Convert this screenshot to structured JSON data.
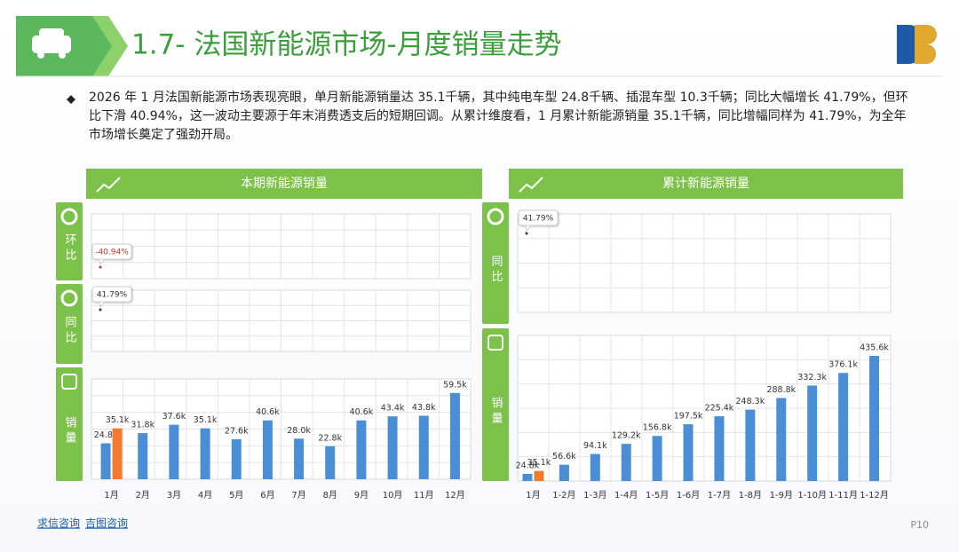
{
  "header": {
    "title": "1.7- 法国新能源市场-月度销量走势"
  },
  "summary": "2026 年 1 月法国新能源市场表现亮眼，单月新能源销量达 35.1千辆，其中纯电车型 24.8千辆、插混车型 10.3千辆；同比大幅增长 41.79%，但环比下滑 40.94%，这一波动主要源于年末消费透支后的短期回调。从累计维度看，1 月累计新能源销量 35.1千辆，同比增幅同样为 41.79%，为全年市场增长奠定了强劲开局。",
  "chart_data": [
    {
      "type": "bar",
      "title": "本期新能源销量",
      "categories": [
        "1月",
        "2月",
        "3月",
        "4月",
        "5月",
        "6月",
        "7月",
        "8月",
        "9月",
        "10月",
        "11月",
        "12月"
      ],
      "indicators": [
        {
          "label": "环比",
          "value": -40.94,
          "value_label": "-40.94%",
          "color": "#c0392b"
        },
        {
          "label": "同比",
          "value": 41.79,
          "value_label": "41.79%",
          "color": "#333333"
        }
      ],
      "bars_label": "销量",
      "series": [
        {
          "color": "#4a8fd6",
          "values": [
            24.8,
            31.8,
            37.6,
            35.1,
            27.6,
            40.6,
            28.0,
            22.8,
            40.6,
            43.4,
            43.8,
            59.5
          ],
          "value_labels": [
            "24.8k",
            "31.8k",
            "37.6k",
            "35.1k",
            "27.6k",
            "40.6k",
            "28.0k",
            "22.8k",
            "40.6k",
            "43.4k",
            "43.8k",
            "59.5k"
          ]
        },
        {
          "color": "#f07b2f",
          "values": [
            35.1,
            null,
            null,
            null,
            null,
            null,
            null,
            null,
            null,
            null,
            null,
            null
          ],
          "value_labels": [
            "35.1k",
            null,
            null,
            null,
            null,
            null,
            null,
            null,
            null,
            null,
            null,
            null
          ]
        }
      ]
    },
    {
      "type": "bar",
      "title": "累计新能源销量",
      "categories": [
        "1月",
        "1-2月",
        "1-3月",
        "1-4月",
        "1-5月",
        "1-6月",
        "1-7月",
        "1-8月",
        "1-9月",
        "1-10月",
        "1-11月",
        "1-12月"
      ],
      "indicators": [
        {
          "label": "同比",
          "value": 41.79,
          "value_label": "41.79%",
          "color": "#333333"
        }
      ],
      "bars_label": "销量",
      "series": [
        {
          "color": "#4a8fd6",
          "values": [
            24.8,
            56.6,
            94.1,
            129.2,
            156.8,
            197.5,
            225.4,
            248.3,
            288.8,
            332.3,
            376.1,
            435.6
          ],
          "value_labels": [
            "24.8k",
            "56.6k",
            "94.1k",
            "129.2k",
            "156.8k",
            "197.5k",
            "225.4k",
            "248.3k",
            "288.8k",
            "332.3k",
            "376.1k",
            "435.6k"
          ]
        },
        {
          "color": "#f07b2f",
          "values": [
            35.1,
            null,
            null,
            null,
            null,
            null,
            null,
            null,
            null,
            null,
            null,
            null
          ],
          "value_labels": [
            "35.1k",
            null,
            null,
            null,
            null,
            null,
            null,
            null,
            null,
            null,
            null,
            null
          ]
        }
      ]
    }
  ],
  "footer": {
    "links": [
      "求信咨询",
      "吉图咨询"
    ],
    "page": "P10"
  }
}
